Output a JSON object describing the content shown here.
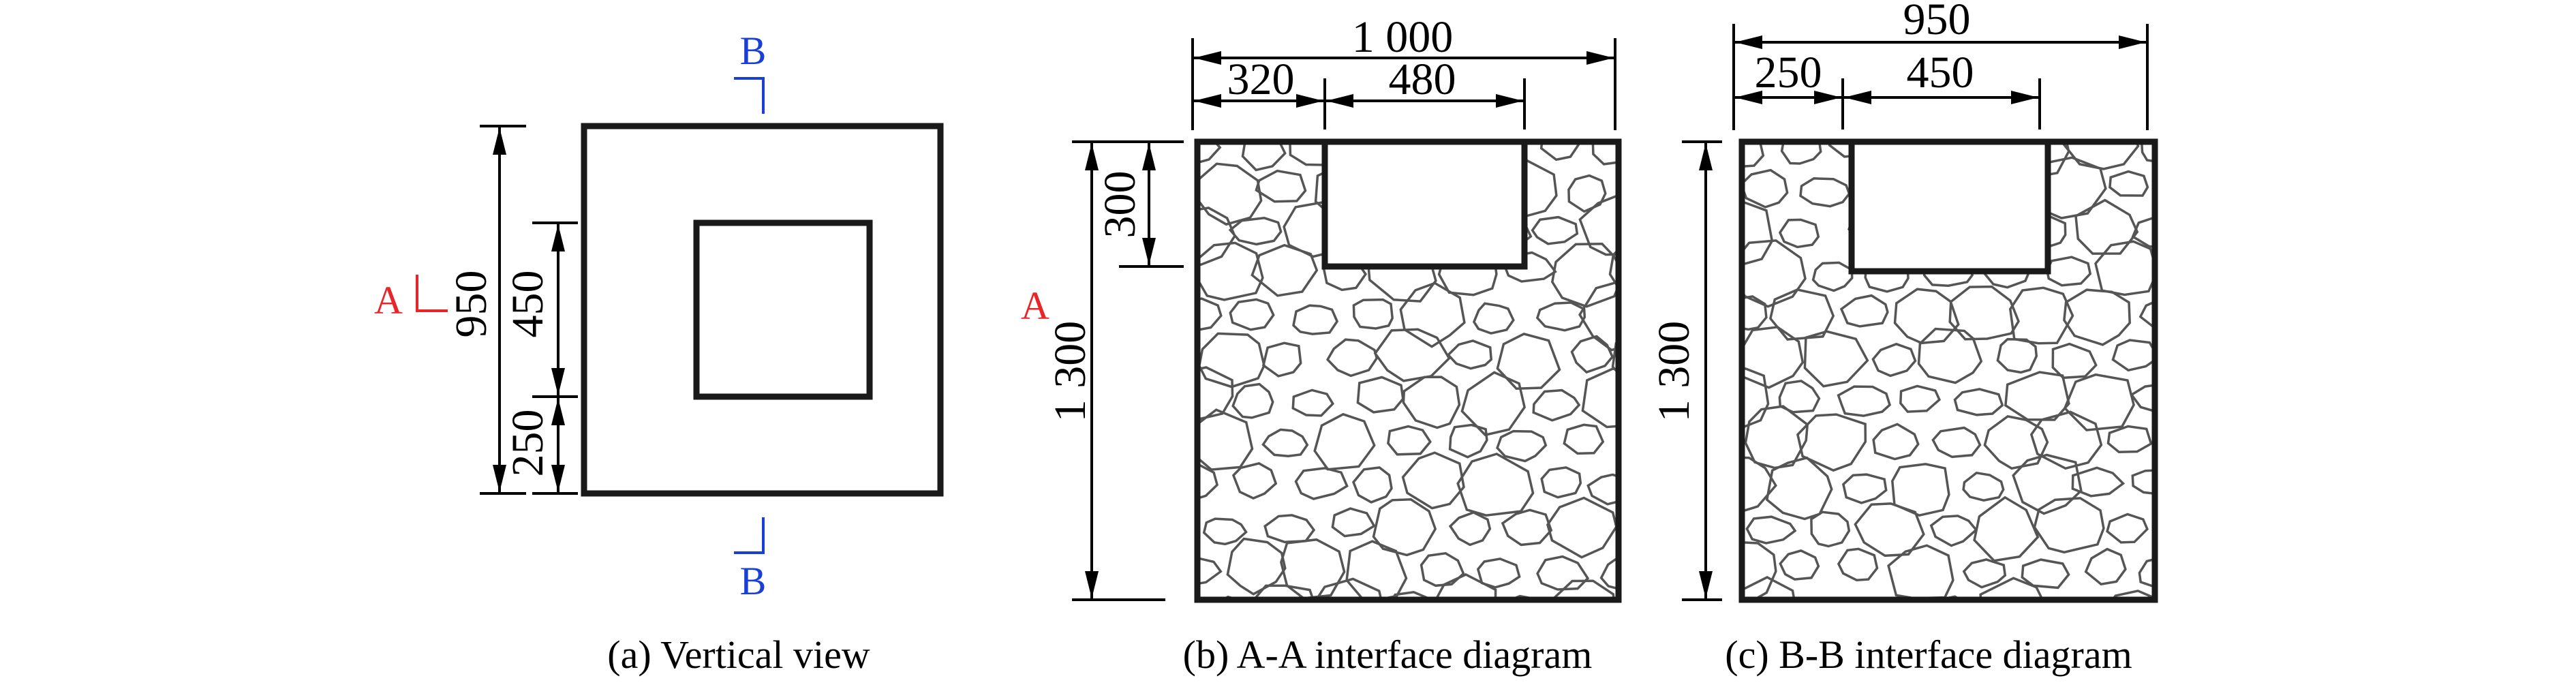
{
  "panels": {
    "a": {
      "caption": "(a) Vertical view",
      "dims": {
        "total": "950",
        "inner": "450",
        "offset": "250"
      },
      "section_a_label": "A",
      "section_b_top": "B",
      "section_b_bottom": "B",
      "section_a_right": "A"
    },
    "b": {
      "caption": "(b) A-A interface diagram",
      "dims": {
        "width": "1 000",
        "left": "320",
        "opening": "480",
        "height": "1 300",
        "depth": "300"
      }
    },
    "c": {
      "caption": "(c) B-B interface diagram",
      "dims": {
        "width": "950",
        "left": "250",
        "opening": "450",
        "height": "1 300"
      }
    }
  },
  "colors": {
    "section_a": "#e8262a",
    "section_b": "#1a3fd6",
    "stone_outline": "#555555"
  }
}
